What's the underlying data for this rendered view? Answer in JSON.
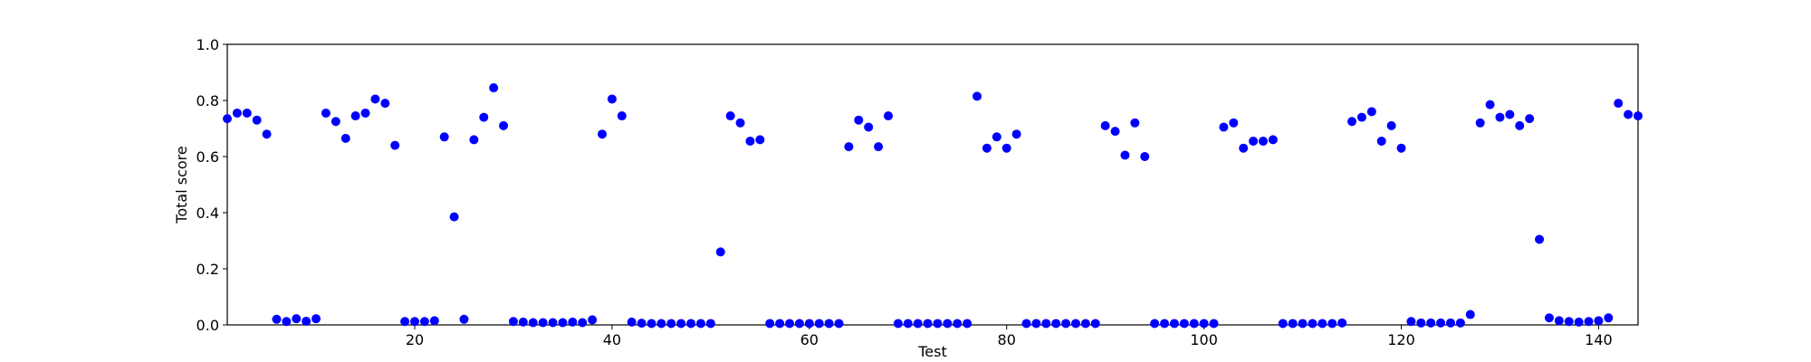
{
  "chart_data": {
    "type": "scatter",
    "x_label": "Test",
    "y_label": "Total score",
    "x": [
      1,
      2,
      3,
      4,
      5,
      6,
      7,
      8,
      9,
      10,
      11,
      12,
      13,
      14,
      15,
      16,
      17,
      18,
      19,
      20,
      21,
      22,
      23,
      24,
      25,
      26,
      27,
      28,
      29,
      30,
      31,
      32,
      33,
      34,
      35,
      36,
      37,
      38,
      39,
      40,
      41,
      42,
      43,
      44,
      45,
      46,
      47,
      48,
      49,
      50,
      51,
      52,
      53,
      54,
      55,
      56,
      57,
      58,
      59,
      60,
      61,
      62,
      63,
      64,
      65,
      66,
      67,
      68,
      69,
      70,
      71,
      72,
      73,
      74,
      75,
      76,
      77,
      78,
      79,
      80,
      81,
      82,
      83,
      84,
      85,
      86,
      87,
      88,
      89,
      90,
      91,
      92,
      93,
      94,
      95,
      96,
      97,
      98,
      99,
      100,
      101,
      102,
      103,
      104,
      105,
      106,
      107,
      108,
      109,
      110,
      111,
      112,
      113,
      114,
      115,
      116,
      117,
      118,
      119,
      120,
      121,
      122,
      123,
      124,
      125,
      126,
      127,
      128,
      129,
      130,
      131,
      132,
      133,
      134,
      135,
      136,
      137,
      138,
      139,
      140,
      141,
      142,
      143,
      144
    ],
    "values": [
      0.735,
      0.755,
      0.755,
      0.73,
      0.68,
      0.02,
      0.012,
      0.022,
      0.013,
      0.022,
      0.755,
      0.725,
      0.665,
      0.745,
      0.755,
      0.805,
      0.79,
      0.64,
      0.012,
      0.012,
      0.012,
      0.015,
      0.67,
      0.385,
      0.02,
      0.66,
      0.74,
      0.845,
      0.71,
      0.012,
      0.01,
      0.008,
      0.008,
      0.008,
      0.008,
      0.01,
      0.008,
      0.018,
      0.68,
      0.805,
      0.745,
      0.01,
      0.006,
      0.005,
      0.005,
      0.005,
      0.005,
      0.005,
      0.005,
      0.005,
      0.26,
      0.745,
      0.72,
      0.655,
      0.66,
      0.005,
      0.005,
      0.005,
      0.005,
      0.005,
      0.005,
      0.005,
      0.005,
      0.635,
      0.73,
      0.705,
      0.635,
      0.745,
      0.005,
      0.005,
      0.005,
      0.005,
      0.005,
      0.005,
      0.005,
      0.005,
      0.815,
      0.63,
      0.67,
      0.63,
      0.68,
      0.005,
      0.005,
      0.005,
      0.005,
      0.005,
      0.005,
      0.005,
      0.005,
      0.71,
      0.69,
      0.605,
      0.72,
      0.6,
      0.005,
      0.005,
      0.005,
      0.005,
      0.005,
      0.005,
      0.005,
      0.705,
      0.72,
      0.63,
      0.655,
      0.655,
      0.66,
      0.005,
      0.005,
      0.005,
      0.005,
      0.005,
      0.005,
      0.007,
      0.725,
      0.74,
      0.76,
      0.655,
      0.71,
      0.63,
      0.012,
      0.007,
      0.007,
      0.007,
      0.007,
      0.007,
      0.037,
      0.72,
      0.785,
      0.74,
      0.75,
      0.71,
      0.735,
      0.305,
      0.025,
      0.015,
      0.012,
      0.01,
      0.012,
      0.015,
      0.025,
      0.79,
      0.75,
      0.745
    ],
    "color": "#0000ff",
    "xlim": [
      1,
      144
    ],
    "xticks": [
      20,
      40,
      60,
      80,
      100,
      120,
      140
    ],
    "ylim": [
      0,
      1
    ],
    "yticks": [
      {
        "value": 0,
        "label": "0.0"
      },
      0.2,
      0.4,
      0.6,
      0.8,
      {
        "value": 1,
        "label": "1.0"
      }
    ],
    "grid": false
  }
}
